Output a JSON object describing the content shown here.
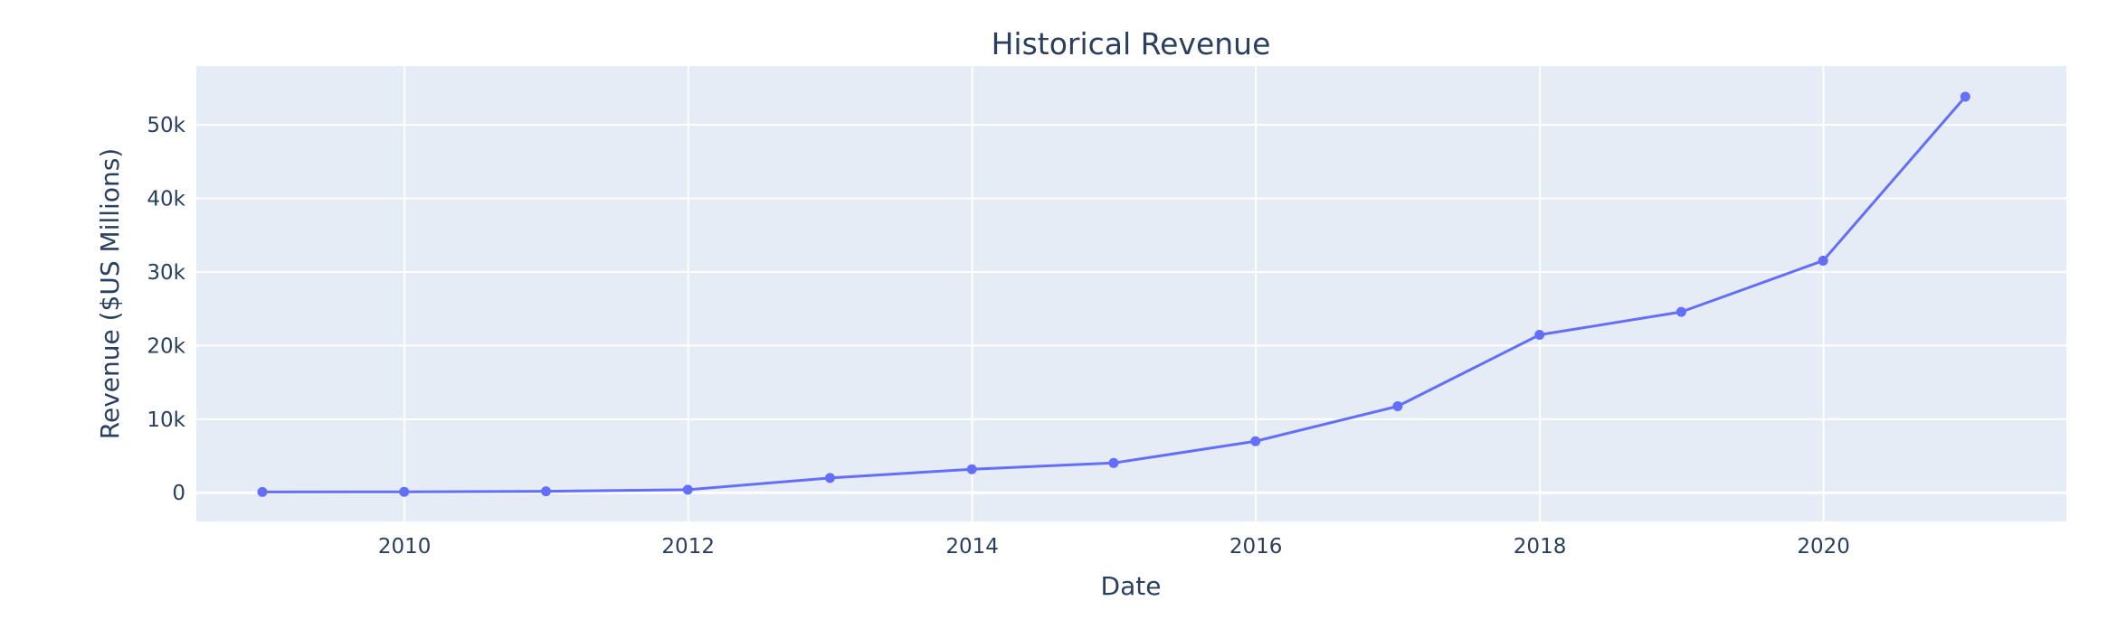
{
  "chart_data": {
    "type": "line",
    "title": "Historical Revenue",
    "xlabel": "Date",
    "ylabel": "Revenue ($US Millions)",
    "x_type": "date",
    "xlim": [
      "2008-07-14",
      "2021-09-17"
    ],
    "ylim": [
      -3900,
      58000
    ],
    "x_ticks": [
      {
        "value": "2010-01-01",
        "label": "2010"
      },
      {
        "value": "2012-01-01",
        "label": "2012"
      },
      {
        "value": "2014-01-01",
        "label": "2014"
      },
      {
        "value": "2016-01-01",
        "label": "2016"
      },
      {
        "value": "2018-01-01",
        "label": "2018"
      },
      {
        "value": "2020-01-01",
        "label": "2020"
      }
    ],
    "y_ticks": [
      {
        "value": 0,
        "label": "0"
      },
      {
        "value": 10000,
        "label": "10k"
      },
      {
        "value": 20000,
        "label": "20k"
      },
      {
        "value": 30000,
        "label": "30k"
      },
      {
        "value": 40000,
        "label": "40k"
      },
      {
        "value": 50000,
        "label": "50k"
      }
    ],
    "grid": true,
    "legend": "none",
    "colors": {
      "plot_background": "#e5ecf6",
      "gridline": "#ffffff",
      "line": "#636efa",
      "text": "#2a3f5f"
    },
    "series": [
      {
        "mode": "lines+markers",
        "points": [
          {
            "x": "2008-12-31",
            "y": 112
          },
          {
            "x": "2009-12-31",
            "y": 117
          },
          {
            "x": "2010-12-31",
            "y": 204
          },
          {
            "x": "2011-12-31",
            "y": 413
          },
          {
            "x": "2012-12-31",
            "y": 2013
          },
          {
            "x": "2013-12-31",
            "y": 3198
          },
          {
            "x": "2014-12-31",
            "y": 4046
          },
          {
            "x": "2015-12-31",
            "y": 7000
          },
          {
            "x": "2016-12-31",
            "y": 11759
          },
          {
            "x": "2017-12-31",
            "y": 21461
          },
          {
            "x": "2018-12-31",
            "y": 24578
          },
          {
            "x": "2019-12-31",
            "y": 31536
          },
          {
            "x": "2020-12-31",
            "y": 53823
          }
        ]
      }
    ]
  }
}
